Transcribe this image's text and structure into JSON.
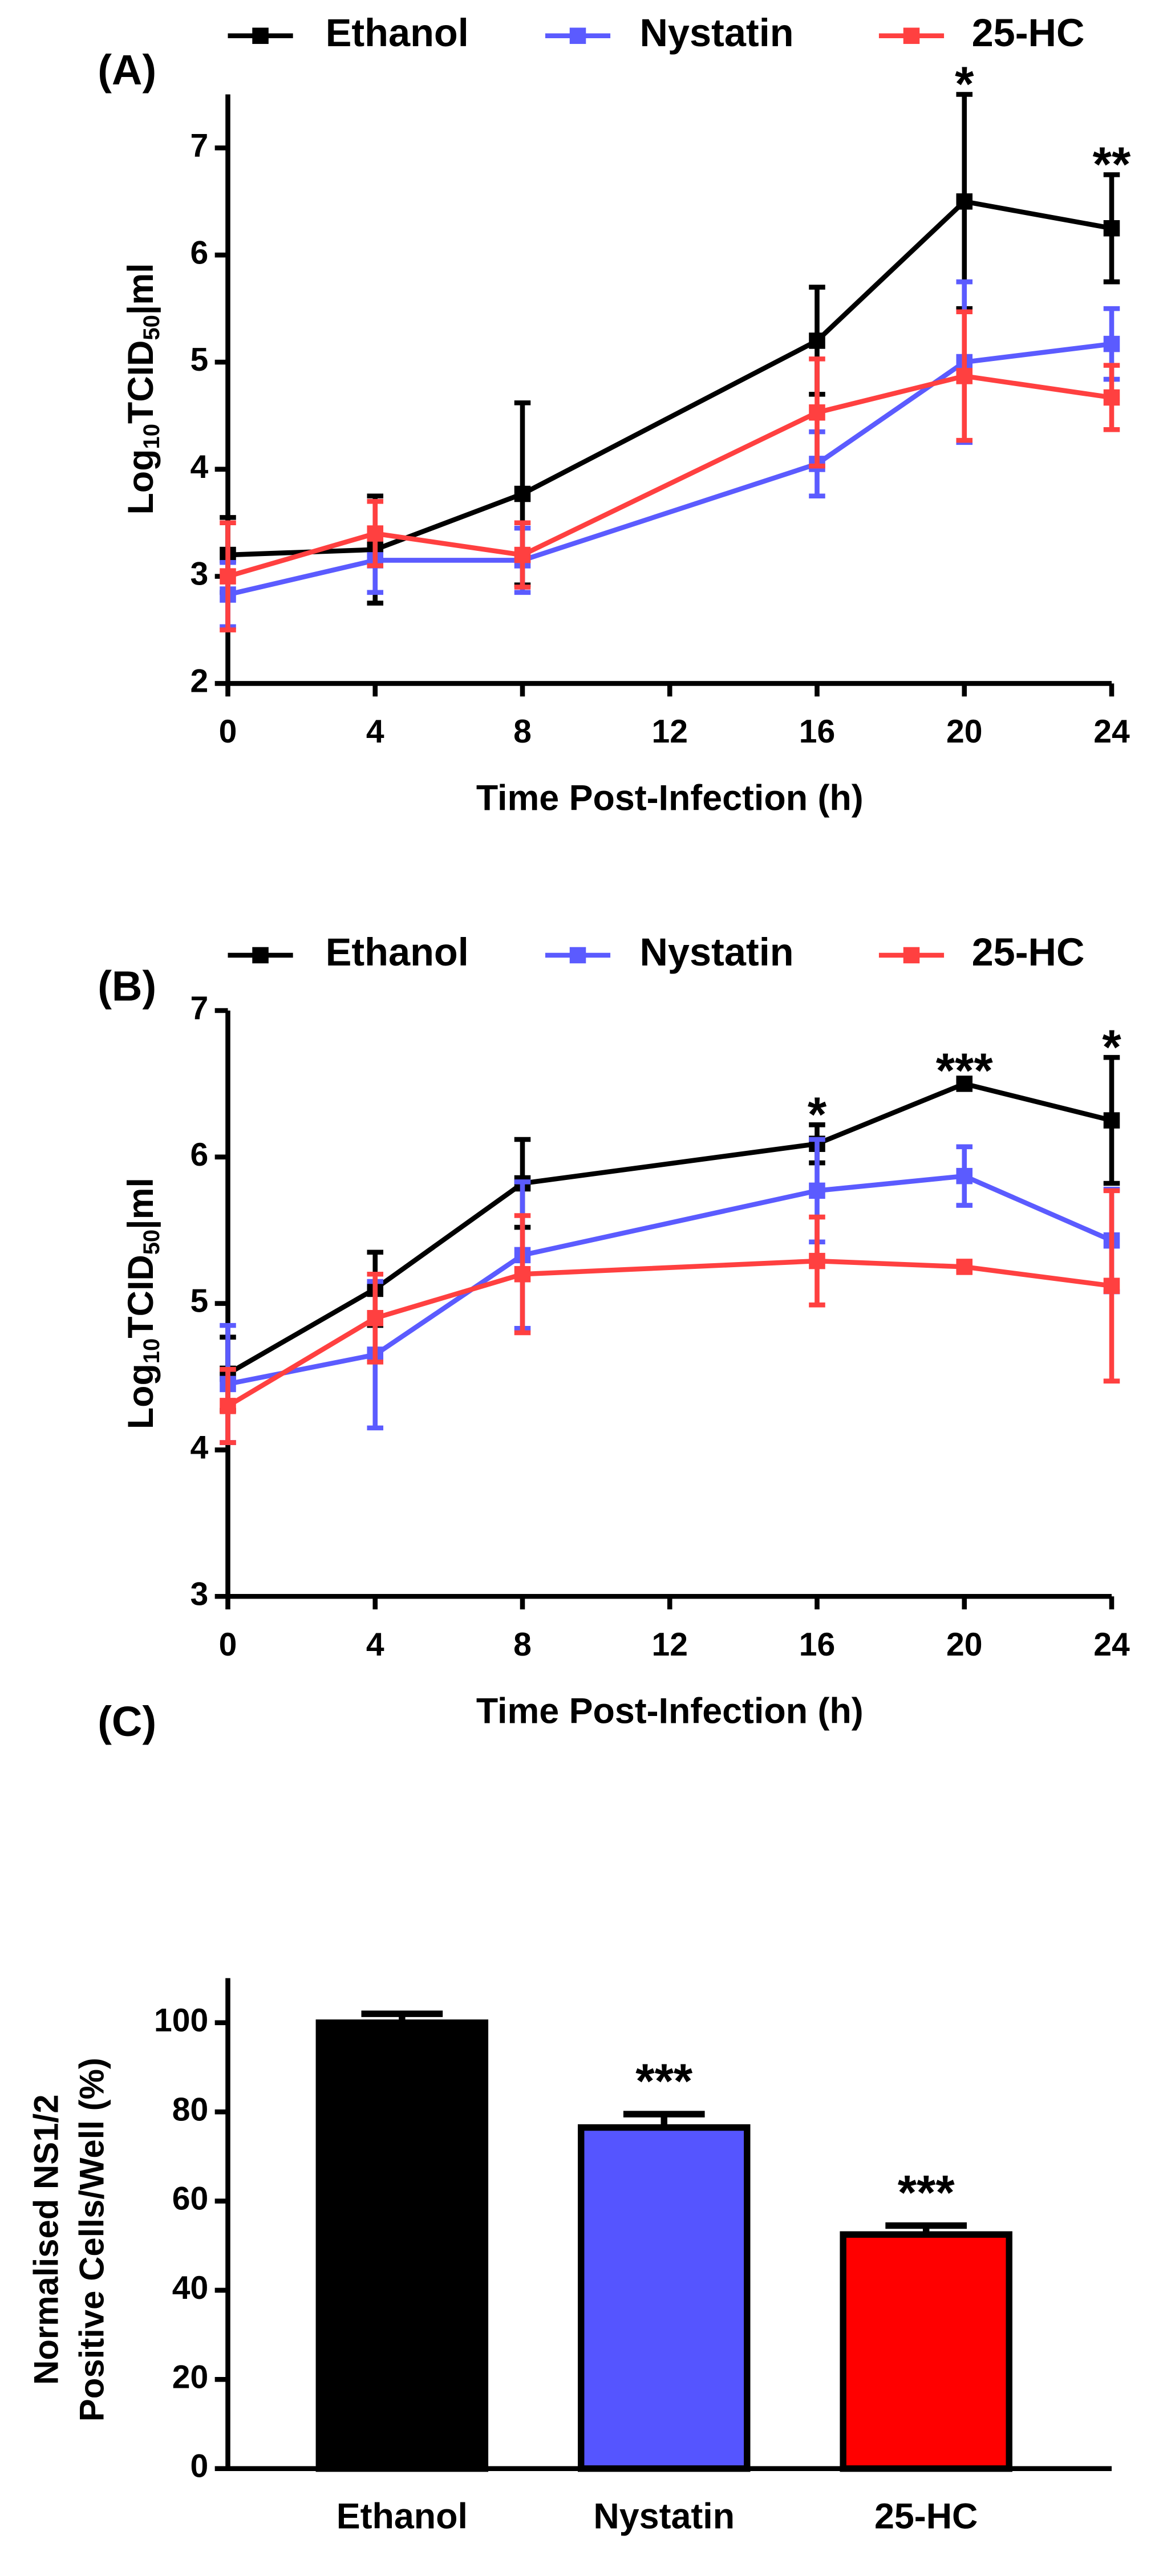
{
  "chart_data": [
    {
      "type": "line",
      "label": "(A)",
      "xlabel": "Time Post-Infection  (h)",
      "ylabel": [
        "Log",
        "10",
        "TCID",
        "50",
        "|ml"
      ],
      "x": [
        0,
        4,
        8,
        16,
        20,
        24
      ],
      "xlim": [
        0,
        24
      ],
      "xticks": [
        0,
        4,
        8,
        12,
        16,
        20,
        24
      ],
      "ylim": [
        2,
        7.5
      ],
      "yticks": [
        2,
        3,
        4,
        5,
        6,
        7
      ],
      "series": [
        {
          "name": "Ethanol",
          "color": "#000000",
          "values": [
            3.2,
            3.25,
            3.77,
            5.2,
            6.5,
            6.25
          ],
          "errors": [
            0.35,
            0.5,
            0.85,
            0.5,
            1.0,
            0.5
          ]
        },
        {
          "name": "Nystatin",
          "color": "#5b5bff",
          "values": [
            2.83,
            3.15,
            3.15,
            4.05,
            5.0,
            5.17
          ],
          "errors": [
            0.3,
            0.3,
            0.3,
            0.3,
            0.75,
            0.33
          ]
        },
        {
          "name": "25-HC",
          "color": "#ff4040",
          "values": [
            3.0,
            3.4,
            3.2,
            4.53,
            4.87,
            4.67
          ],
          "errors": [
            0.5,
            0.3,
            0.3,
            0.5,
            0.6,
            0.3
          ]
        }
      ],
      "annotations": [
        {
          "text": "*",
          "x": 20
        },
        {
          "text": "**",
          "x": 24
        }
      ]
    },
    {
      "type": "line",
      "label": "(B)",
      "xlabel": "Time Post-Infection  (h)",
      "ylabel": [
        "Log",
        "10",
        "TCID",
        "50",
        "|ml"
      ],
      "x": [
        0,
        4,
        8,
        16,
        20,
        24
      ],
      "xlim": [
        0,
        24
      ],
      "xticks": [
        0,
        4,
        8,
        12,
        16,
        20,
        24
      ],
      "ylim": [
        3,
        7
      ],
      "yticks": [
        3,
        4,
        5,
        6,
        7
      ],
      "series": [
        {
          "name": "Ethanol",
          "color": "#000000",
          "values": [
            4.52,
            5.1,
            5.82,
            6.09,
            6.5,
            6.25
          ],
          "errors": [
            0.25,
            0.25,
            0.3,
            0.13,
            0.02,
            0.43
          ]
        },
        {
          "name": "Nystatin",
          "color": "#5b5bff",
          "values": [
            4.45,
            4.65,
            5.33,
            5.77,
            5.87,
            5.43
          ],
          "errors": [
            0.4,
            0.5,
            0.5,
            0.35,
            0.2,
            0.35
          ]
        },
        {
          "name": "25-HC",
          "color": "#ff4040",
          "values": [
            4.3,
            4.9,
            5.2,
            5.29,
            5.25,
            5.12
          ],
          "errors": [
            0.25,
            0.3,
            0.4,
            0.3,
            0.02,
            0.65
          ]
        }
      ],
      "annotations": [
        {
          "text": "*",
          "x": 16
        },
        {
          "text": "***",
          "x": 20
        },
        {
          "text": "*",
          "x": 24
        }
      ]
    },
    {
      "type": "bar",
      "label": "(C)",
      "ylabel": [
        "Normalised NS1/2",
        "Positive Cells/Well (%)"
      ],
      "categories": [
        "Ethanol",
        "Nystatin",
        "25-HC"
      ],
      "values": [
        100,
        76.5,
        52.5
      ],
      "errors": [
        2,
        3,
        2
      ],
      "colors": [
        "#000000",
        "#5555ff",
        "#ff0000"
      ],
      "ylim": [
        0,
        110
      ],
      "yticks": [
        0,
        20,
        40,
        60,
        80,
        100
      ],
      "annotations": [
        {
          "text": "***",
          "category": 1
        },
        {
          "text": "***",
          "category": 2
        }
      ]
    }
  ]
}
